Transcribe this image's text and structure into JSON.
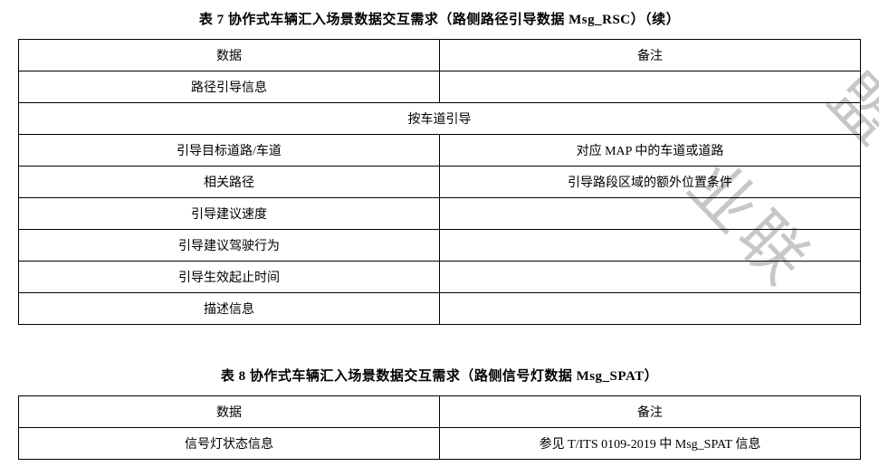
{
  "table7": {
    "title": "表 7 协作式车辆汇入场景数据交互需求（路侧路径引导数据 Msg_RSC）（续）",
    "headers": {
      "col1": "数据",
      "col2": "备注"
    },
    "rows": [
      {
        "data": "路径引导信息",
        "remark": ""
      },
      {
        "spanning": "按车道引导"
      },
      {
        "data": "引导目标道路/车道",
        "remark": "对应 MAP 中的车道或道路"
      },
      {
        "data": "相关路径",
        "remark": "引导路段区域的额外位置条件"
      },
      {
        "data": "引导建议速度",
        "remark": ""
      },
      {
        "data": "引导建议驾驶行为",
        "remark": ""
      },
      {
        "data": "引导生效起止时间",
        "remark": ""
      },
      {
        "data": "描述信息",
        "remark": ""
      }
    ]
  },
  "table8": {
    "title": "表 8 协作式车辆汇入场景数据交互需求（路侧信号灯数据 Msg_SPAT）",
    "headers": {
      "col1": "数据",
      "col2": "备注"
    },
    "rows": [
      {
        "data": "信号灯状态信息",
        "remark": "参见 T/ITS 0109-2019 中 Msg_SPAT 信息"
      }
    ]
  },
  "watermark": {
    "text1": "业联",
    "text2": "盟"
  },
  "colors": {
    "text": "#000000",
    "border": "#000000",
    "background": "#ffffff",
    "watermark": "rgba(0,0,0,0.22)"
  }
}
